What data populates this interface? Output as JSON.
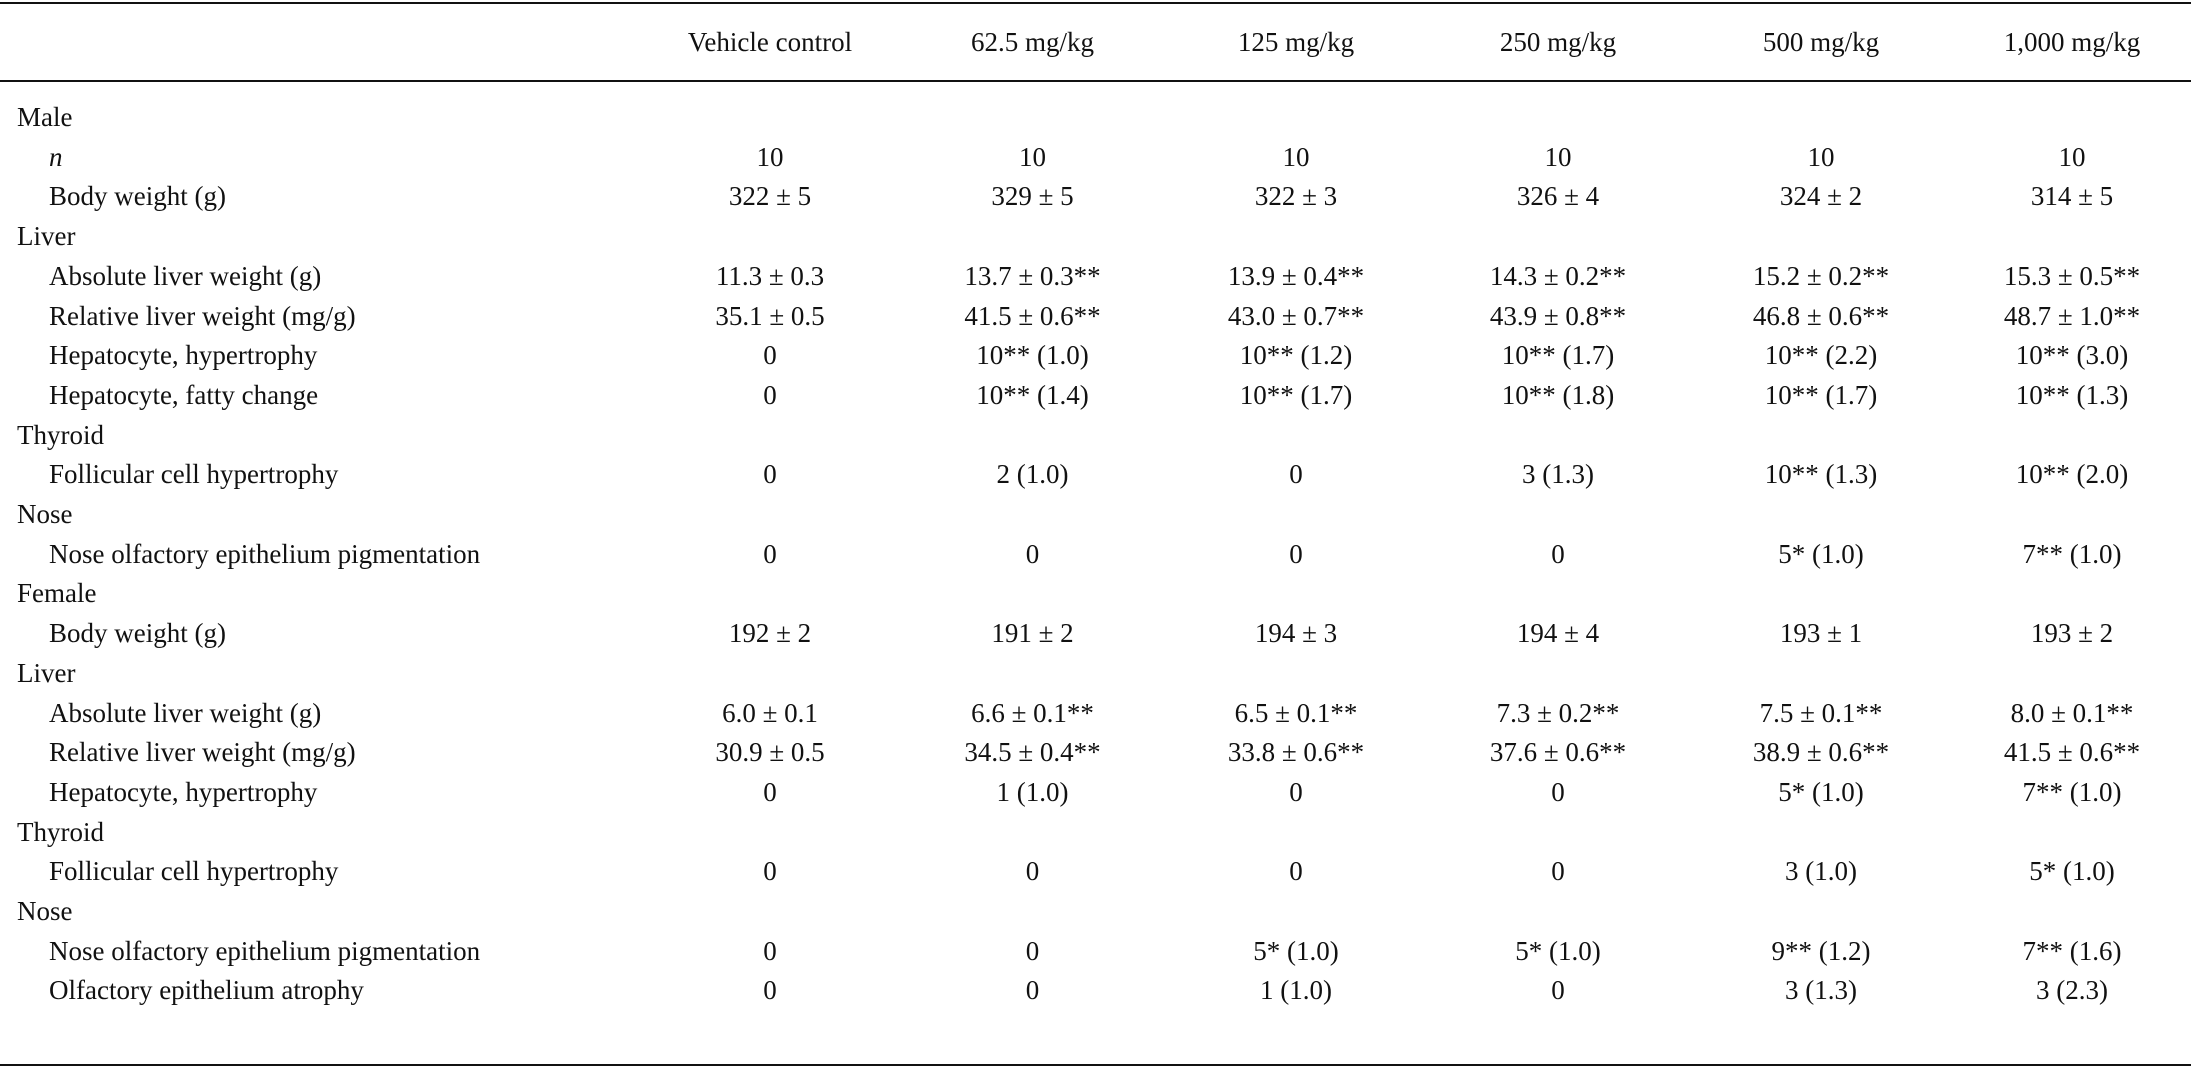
{
  "columns": [
    "",
    "Vehicle control",
    "62.5 mg/kg",
    "125 mg/kg",
    "250 mg/kg",
    "500 mg/kg",
    "1,000 mg/kg"
  ],
  "rows": [
    {
      "label": "Male",
      "section": true,
      "values": []
    },
    {
      "label": "n",
      "italic": true,
      "values": [
        "10",
        "10",
        "10",
        "10",
        "10",
        "10"
      ]
    },
    {
      "label": "Body weight (g)",
      "values": [
        "322 ± 5",
        "329 ± 5",
        "322 ± 3",
        "326 ± 4",
        "324 ± 2",
        "314 ± 5"
      ]
    },
    {
      "label": "Liver",
      "section": true,
      "values": []
    },
    {
      "label": "Absolute liver weight (g)",
      "values": [
        "11.3 ± 0.3",
        "13.7 ± 0.3**",
        "13.9 ± 0.4**",
        "14.3 ± 0.2**",
        "15.2 ± 0.2**",
        "15.3 ± 0.5**"
      ]
    },
    {
      "label": "Relative liver weight (mg/g)",
      "values": [
        "35.1 ± 0.5",
        "41.5 ± 0.6**",
        "43.0 ± 0.7**",
        "43.9 ± 0.8**",
        "46.8 ± 0.6**",
        "48.7 ± 1.0**"
      ]
    },
    {
      "label": "Hepatocyte, hypertrophy",
      "values": [
        "0",
        "10** (1.0)",
        "10** (1.2)",
        "10** (1.7)",
        "10** (2.2)",
        "10** (3.0)"
      ]
    },
    {
      "label": "Hepatocyte, fatty change",
      "values": [
        "0",
        "10** (1.4)",
        "10** (1.7)",
        "10** (1.8)",
        "10** (1.7)",
        "10** (1.3)"
      ]
    },
    {
      "label": "Thyroid",
      "section": true,
      "values": []
    },
    {
      "label": "Follicular cell hypertrophy",
      "values": [
        "0",
        "2 (1.0)",
        "0",
        "3 (1.3)",
        "10** (1.3)",
        "10** (2.0)"
      ]
    },
    {
      "label": "Nose",
      "section": true,
      "values": []
    },
    {
      "label": "Nose olfactory epithelium pigmentation",
      "values": [
        "0",
        "0",
        "0",
        "0",
        "5* (1.0)",
        "7** (1.0)"
      ]
    },
    {
      "label": "Female",
      "section": true,
      "values": []
    },
    {
      "label": "Body weight (g)",
      "values": [
        "192 ± 2",
        "191 ± 2",
        "194 ± 3",
        "194 ± 4",
        "193 ± 1",
        "193 ± 2"
      ]
    },
    {
      "label": "Liver",
      "section": true,
      "values": []
    },
    {
      "label": "Absolute liver weight (g)",
      "values": [
        "6.0 ± 0.1",
        "6.6 ± 0.1**",
        "6.5 ± 0.1**",
        "7.3 ± 0.2**",
        "7.5 ± 0.1**",
        "8.0 ± 0.1**"
      ]
    },
    {
      "label": "Relative liver weight (mg/g)",
      "values": [
        "30.9 ± 0.5",
        "34.5 ± 0.4**",
        "33.8 ± 0.6**",
        "37.6 ± 0.6**",
        "38.9 ± 0.6**",
        "41.5 ± 0.6**"
      ]
    },
    {
      "label": "Hepatocyte, hypertrophy",
      "values": [
        "0",
        "1 (1.0)",
        "0",
        "0",
        "5* (1.0)",
        "7** (1.0)"
      ]
    },
    {
      "label": "Thyroid",
      "section": true,
      "values": []
    },
    {
      "label": "Follicular cell hypertrophy",
      "values": [
        "0",
        "0",
        "0",
        "0",
        "3 (1.0)",
        "5* (1.0)"
      ]
    },
    {
      "label": "Nose",
      "section": true,
      "values": []
    },
    {
      "label": "Nose olfactory epithelium pigmentation",
      "values": [
        "0",
        "0",
        "5* (1.0)",
        "5* (1.0)",
        "9** (1.2)",
        "7** (1.6)"
      ]
    },
    {
      "label": "Olfactory epithelium atrophy",
      "values": [
        "0",
        "0",
        "1 (1.0)",
        "0",
        "3 (1.3)",
        "3 (2.3)"
      ]
    }
  ]
}
